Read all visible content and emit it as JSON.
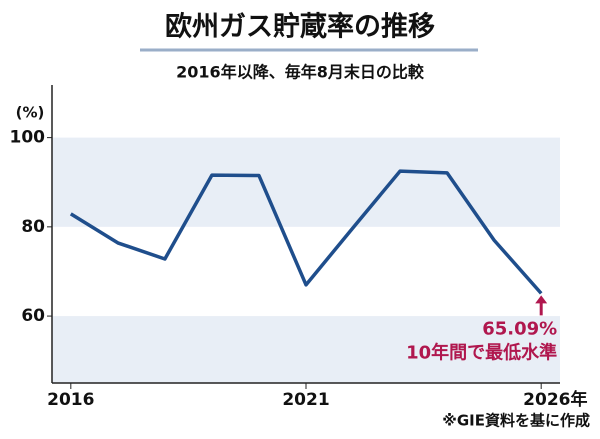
{
  "chart_data": {
    "type": "line",
    "title": "欧州ガス貯蔵率の推移",
    "subtitle": "2016年以降、毎年8月末日の比較",
    "y_label": "(%)",
    "x": [
      2016,
      2017,
      2018,
      2019,
      2020,
      2021,
      2022,
      2023,
      2024,
      2025,
      2026
    ],
    "values": [
      82.9,
      76.4,
      72.8,
      91.6,
      91.5,
      67,
      79.8,
      92.5,
      92.1,
      77,
      65.09
    ],
    "color": "#1f4e8c",
    "xlim": [
      2015.6,
      2026.4
    ],
    "xticks": [
      2016,
      2021,
      {
        "value": 2026,
        "label": "2026年"
      }
    ],
    "ylim": [
      45,
      110
    ],
    "yticks": [
      60,
      80,
      100
    ],
    "annotations": [
      "65.09%",
      "10年間で最低水準"
    ],
    "annotation_color": "#b0174e",
    "source": "※GIE資料を基に作成"
  }
}
